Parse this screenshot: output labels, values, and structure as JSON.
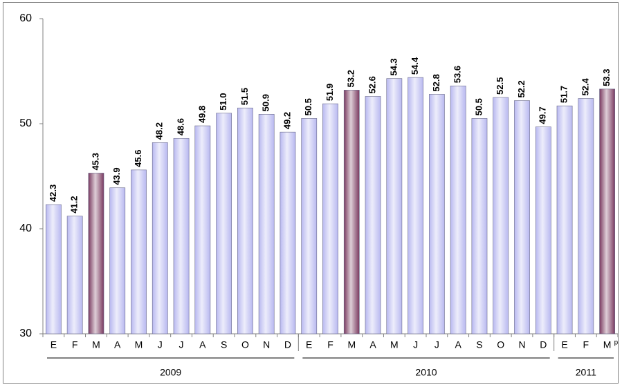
{
  "chart_data": {
    "type": "bar",
    "categories": [
      "E",
      "F",
      "M",
      "A",
      "M",
      "J",
      "J",
      "A",
      "S",
      "O",
      "N",
      "D",
      "E",
      "F",
      "M",
      "A",
      "M",
      "J",
      "J",
      "A",
      "S",
      "O",
      "N",
      "D",
      "E",
      "F",
      "M"
    ],
    "values": [
      42.3,
      41.2,
      45.3,
      43.9,
      45.6,
      48.2,
      48.6,
      49.8,
      51.0,
      51.5,
      50.9,
      49.2,
      50.5,
      51.9,
      53.2,
      52.6,
      54.3,
      54.4,
      52.8,
      53.6,
      50.5,
      52.5,
      52.2,
      49.7,
      51.7,
      52.4,
      53.3
    ],
    "value_labels": [
      "42.3",
      "41.2",
      "45.3",
      "43.9",
      "45.6",
      "48.2",
      "48.6",
      "49.8",
      "51.0",
      "51.5",
      "50.9",
      "49.2",
      "50.5",
      "51.9",
      "53.2",
      "52.6",
      "54.3",
      "54.4",
      "52.8",
      "53.6",
      "50.5",
      "52.5",
      "52.2",
      "49.7",
      "51.7",
      "52.4",
      "53.3"
    ],
    "colors": [
      "#b8b8f0",
      "#b8b8f0",
      "#7a3a60",
      "#b8b8f0",
      "#b8b8f0",
      "#b8b8f0",
      "#b8b8f0",
      "#b8b8f0",
      "#b8b8f0",
      "#b8b8f0",
      "#b8b8f0",
      "#b8b8f0",
      "#b8b8f0",
      "#b8b8f0",
      "#7a3a60",
      "#b8b8f0",
      "#b8b8f0",
      "#b8b8f0",
      "#b8b8f0",
      "#b8b8f0",
      "#b8b8f0",
      "#b8b8f0",
      "#b8b8f0",
      "#b8b8f0",
      "#b8b8f0",
      "#b8b8f0",
      "#7a3a60"
    ],
    "groups": [
      {
        "name": "2009",
        "count": 12
      },
      {
        "name": "2010",
        "count": 12
      },
      {
        "name": "2011",
        "count": 3
      }
    ],
    "last_category_note": "p",
    "ylim": [
      30,
      60
    ],
    "yticks": [
      30,
      40,
      50,
      60
    ],
    "grid": false
  }
}
